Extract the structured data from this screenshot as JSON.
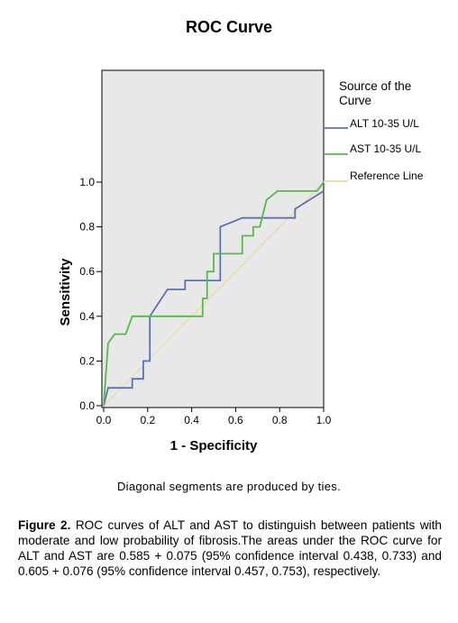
{
  "chart_data": {
    "type": "line",
    "title": "ROC Curve",
    "xlabel": "1 - Specificity",
    "ylabel": "Sensitivity",
    "xlim": [
      0,
      1
    ],
    "ylim": [
      0,
      1
    ],
    "x_ticks": [
      "0.0",
      "0.2",
      "0.4",
      "0.6",
      "0.8",
      "1.0"
    ],
    "y_ticks": [
      "0.0",
      "0.2",
      "0.4",
      "0.6",
      "0.8",
      "1.0"
    ],
    "grid": false,
    "background": "#e8e8e8",
    "legend_title": "Source of the Curve",
    "legend_placement": "right",
    "series": [
      {
        "name": "ALT 10-35 U/L",
        "color": "#5b72b4",
        "points": [
          [
            0,
            0
          ],
          [
            0.02,
            0.08
          ],
          [
            0.13,
            0.08
          ],
          [
            0.13,
            0.12
          ],
          [
            0.18,
            0.12
          ],
          [
            0.18,
            0.2
          ],
          [
            0.21,
            0.2
          ],
          [
            0.21,
            0.4
          ],
          [
            0.29,
            0.52
          ],
          [
            0.37,
            0.52
          ],
          [
            0.37,
            0.56
          ],
          [
            0.53,
            0.56
          ],
          [
            0.53,
            0.8
          ],
          [
            0.63,
            0.84
          ],
          [
            0.87,
            0.84
          ],
          [
            0.87,
            0.88
          ],
          [
            1.0,
            0.96
          ]
        ]
      },
      {
        "name": "AST 10-35 U/L",
        "color": "#55bb46",
        "points": [
          [
            0,
            0
          ],
          [
            0.02,
            0.28
          ],
          [
            0.05,
            0.32
          ],
          [
            0.1,
            0.32
          ],
          [
            0.13,
            0.4
          ],
          [
            0.45,
            0.4
          ],
          [
            0.45,
            0.48
          ],
          [
            0.47,
            0.48
          ],
          [
            0.47,
            0.6
          ],
          [
            0.5,
            0.6
          ],
          [
            0.5,
            0.68
          ],
          [
            0.63,
            0.68
          ],
          [
            0.63,
            0.76
          ],
          [
            0.68,
            0.76
          ],
          [
            0.68,
            0.8
          ],
          [
            0.71,
            0.8
          ],
          [
            0.74,
            0.92
          ],
          [
            0.79,
            0.96
          ],
          [
            0.97,
            0.96
          ],
          [
            1.0,
            1.0
          ]
        ]
      },
      {
        "name": "Reference Line",
        "color": "#e8dca8",
        "points": [
          [
            0,
            0
          ],
          [
            1,
            1
          ]
        ]
      }
    ]
  },
  "footnote": "Diagonal segments are produced by ties.",
  "caption": {
    "label": "Figure 2.",
    "text": " ROC curves of ALT and AST to distinguish between patients with moderate and low probability of fibrosis.The areas under the ROC curve for ALT and AST are 0.585 + 0.075 (95% confidence interval 0.438, 0.733) and 0.605 + 0.076 (95% confidence interval 0.457, 0.753), respectively."
  }
}
